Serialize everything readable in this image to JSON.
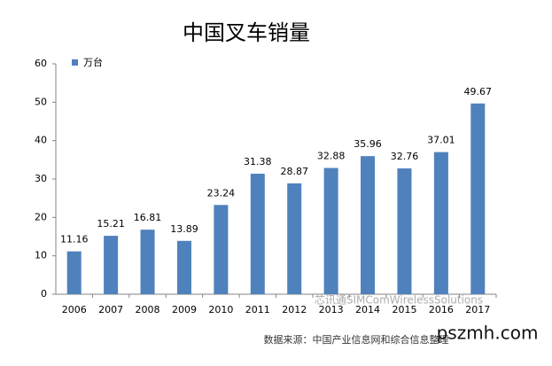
{
  "chart_data": {
    "type": "bar",
    "title": "中国叉车销量",
    "categories": [
      "2006",
      "2007",
      "2008",
      "2009",
      "2010",
      "2011",
      "2012",
      "2013",
      "2014",
      "2015",
      "2016",
      "2017"
    ],
    "series": [
      {
        "name": "万台",
        "color": "#4f81bd",
        "values": [
          11.16,
          15.21,
          16.81,
          13.89,
          23.24,
          31.38,
          28.87,
          32.88,
          35.96,
          32.76,
          37.01,
          49.67
        ]
      }
    ],
    "ylim": [
      0,
      60
    ],
    "yticks": [
      0,
      10,
      20,
      30,
      40,
      50,
      60
    ],
    "grid": false,
    "legend": "top-left",
    "source": "数据来源：中国产业信息网和综合信息整理",
    "watermark": "芯讯通SIMComWirelessSolutions",
    "site": "pszmh.com"
  }
}
